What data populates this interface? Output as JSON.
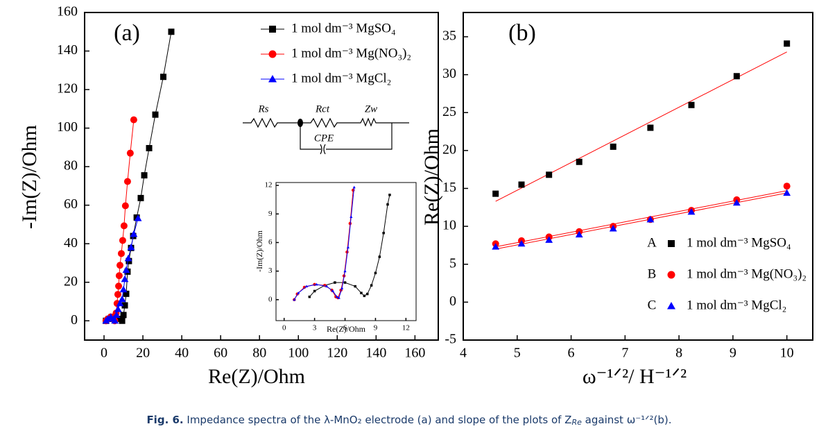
{
  "chart_data": [
    {
      "type": "scatter",
      "panel_label": "(a)",
      "x_label": "Re(Z)/Ohm",
      "y_label": "-Im(Z)/Ohm",
      "connect": true,
      "xlim": [
        -10,
        172
      ],
      "ylim": [
        -10,
        160
      ],
      "xticks": [
        0,
        20,
        40,
        60,
        80,
        100,
        120,
        140,
        160
      ],
      "yticks": [
        0,
        20,
        40,
        60,
        80,
        100,
        120,
        140,
        160
      ],
      "legend": "upper right",
      "circuit_labels": [
        "Rs",
        "Rct",
        "Zw",
        "CPE"
      ],
      "series": [
        {
          "name": "1 mol dm⁻³ MgSO₄",
          "color": "#000000",
          "marker": "square",
          "x": [
            1,
            2.5,
            4,
            6,
            8,
            9.3,
            10,
            10.7,
            11.4,
            12.1,
            12.8,
            13.9,
            15,
            16.8,
            18.9,
            20.7,
            23.2,
            26.4,
            30.5,
            34.6
          ],
          "values": [
            0,
            1,
            2,
            2,
            1,
            0,
            3,
            8,
            14,
            25.5,
            31,
            37.8,
            44,
            53.6,
            63.7,
            75.5,
            89.6,
            107,
            126.6,
            150
          ]
        },
        {
          "name": "1 mol dm⁻³ Mg(NO₃)₂",
          "color": "#ff0000",
          "marker": "circle",
          "x": [
            1,
            2,
            3.5,
            5,
            5.5,
            6.2,
            6.7,
            7.1,
            7.5,
            7.8,
            8.2,
            8.9,
            9.6,
            10.3,
            11,
            12.1,
            13.5,
            15.3
          ],
          "values": [
            0,
            1,
            2,
            1,
            0,
            4,
            9,
            13.7,
            18,
            23.4,
            28.8,
            34.9,
            41.7,
            49.3,
            59.7,
            72.3,
            87,
            104.3
          ]
        },
        {
          "name": "1 mol dm⁻³ MgCl₂",
          "color": "#0000ff",
          "marker": "triangle",
          "x": [
            1,
            2,
            3.5,
            5,
            5.6,
            6.4,
            7.2,
            8.2,
            9.3,
            10,
            10.7,
            11.4,
            12.5,
            13.9,
            15.3,
            17.5
          ],
          "values": [
            0,
            1,
            2,
            1,
            0,
            3,
            6,
            9,
            11.2,
            16.2,
            21.6,
            26.3,
            32.4,
            38.1,
            45,
            53.2
          ]
        }
      ]
    },
    {
      "type": "scatter",
      "x_label": "Re(Z)/Ohm",
      "y_label": "-Im(Z)/Ohm",
      "connect": true,
      "xlim": [
        -0.8,
        13
      ],
      "ylim": [
        -2.2,
        12.3
      ],
      "xticks": [
        0,
        3,
        6,
        9,
        12
      ],
      "yticks": [
        0,
        3,
        6,
        9,
        12
      ],
      "series": [
        {
          "color": "#000000",
          "marker": "square",
          "x": [
            2.5,
            3,
            4,
            5,
            6,
            7,
            7.6,
            7.9,
            8.2,
            8.6,
            9,
            9.4,
            9.8,
            10.2,
            10.4
          ],
          "values": [
            0.3,
            0.9,
            1.5,
            1.8,
            1.8,
            1.4,
            0.7,
            0.4,
            0.6,
            1.5,
            2.8,
            4.5,
            7,
            10,
            11
          ]
        },
        {
          "color": "#ff0000",
          "marker": "circle",
          "x": [
            1,
            1.3,
            2,
            3,
            4,
            4.7,
            5.1,
            5.3,
            5.6,
            5.9,
            6.2,
            6.5,
            6.8
          ],
          "values": [
            0,
            0.6,
            1.3,
            1.6,
            1.5,
            1,
            0.3,
            0.2,
            1,
            2.5,
            5,
            8,
            11.5
          ]
        },
        {
          "color": "#0000ff",
          "marker": "triangle",
          "x": [
            1,
            1.4,
            2.2,
            3.2,
            4.2,
            4.8,
            5.2,
            5.4,
            5.7,
            6,
            6.3,
            6.6,
            6.9
          ],
          "values": [
            0,
            0.7,
            1.4,
            1.6,
            1.4,
            0.9,
            0.3,
            0.2,
            1.2,
            3,
            5.5,
            8.7,
            11.8
          ]
        }
      ]
    },
    {
      "type": "scatter",
      "panel_label": "(b)",
      "x_label": "ω⁻¹ᐟ²/ H⁻¹ᐟ²",
      "y_label": "Re(Z)/Ohm",
      "connect": false,
      "xlim": [
        4,
        10.48
      ],
      "ylim": [
        -5,
        38.2
      ],
      "xticks": [
        4,
        5,
        6,
        7,
        8,
        9,
        10
      ],
      "yticks": [
        -5,
        0,
        5,
        10,
        15,
        20,
        25,
        30,
        35
      ],
      "legend": "lower right",
      "series": [
        {
          "label": "A",
          "name": "1 mol dm⁻³ MgSO₄",
          "color": "#000000",
          "marker": "square",
          "fit_color": "#ff0000",
          "x": [
            4.6,
            5.08,
            5.59,
            6.15,
            6.78,
            7.47,
            8.23,
            9.07,
            10
          ],
          "values": [
            14.3,
            15.5,
            16.8,
            18.5,
            20.5,
            23,
            26,
            29.8,
            34.1
          ],
          "fit": {
            "x": [
              4.6,
              10
            ],
            "values": [
              13.3,
              33
            ]
          }
        },
        {
          "label": "B",
          "name": "1 mol dm⁻³ Mg(NO₃)₂",
          "color": "#ff0000",
          "marker": "circle",
          "fit_color": "#ff0000",
          "x": [
            4.6,
            5.08,
            5.59,
            6.15,
            6.78,
            7.47,
            8.23,
            9.07,
            10
          ],
          "values": [
            7.7,
            8.1,
            8.6,
            9.3,
            10,
            10.9,
            12.1,
            13.5,
            15.3
          ],
          "fit": {
            "x": [
              4.6,
              10
            ],
            "values": [
              7.3,
              14.7
            ]
          }
        },
        {
          "label": "C",
          "name": "1 mol dm⁻³ MgCl₂",
          "color": "#0000ff",
          "marker": "triangle",
          "fit_color": "#ff0000",
          "x": [
            4.6,
            5.08,
            5.59,
            6.15,
            6.78,
            7.47,
            8.23,
            9.07,
            10
          ],
          "values": [
            7.3,
            7.7,
            8.2,
            8.9,
            9.7,
            10.9,
            11.9,
            13.1,
            14.4
          ],
          "fit": {
            "x": [
              4.6,
              10
            ],
            "values": [
              7,
              14.4
            ]
          }
        }
      ]
    }
  ],
  "caption": {
    "label": "Fig. 6.",
    "text": [
      "  Impedance spectra of the λ-MnO₂ electrode (a) and slope of the plots of Z",
      "Re",
      " against ω⁻¹ᐟ²(b)."
    ]
  }
}
